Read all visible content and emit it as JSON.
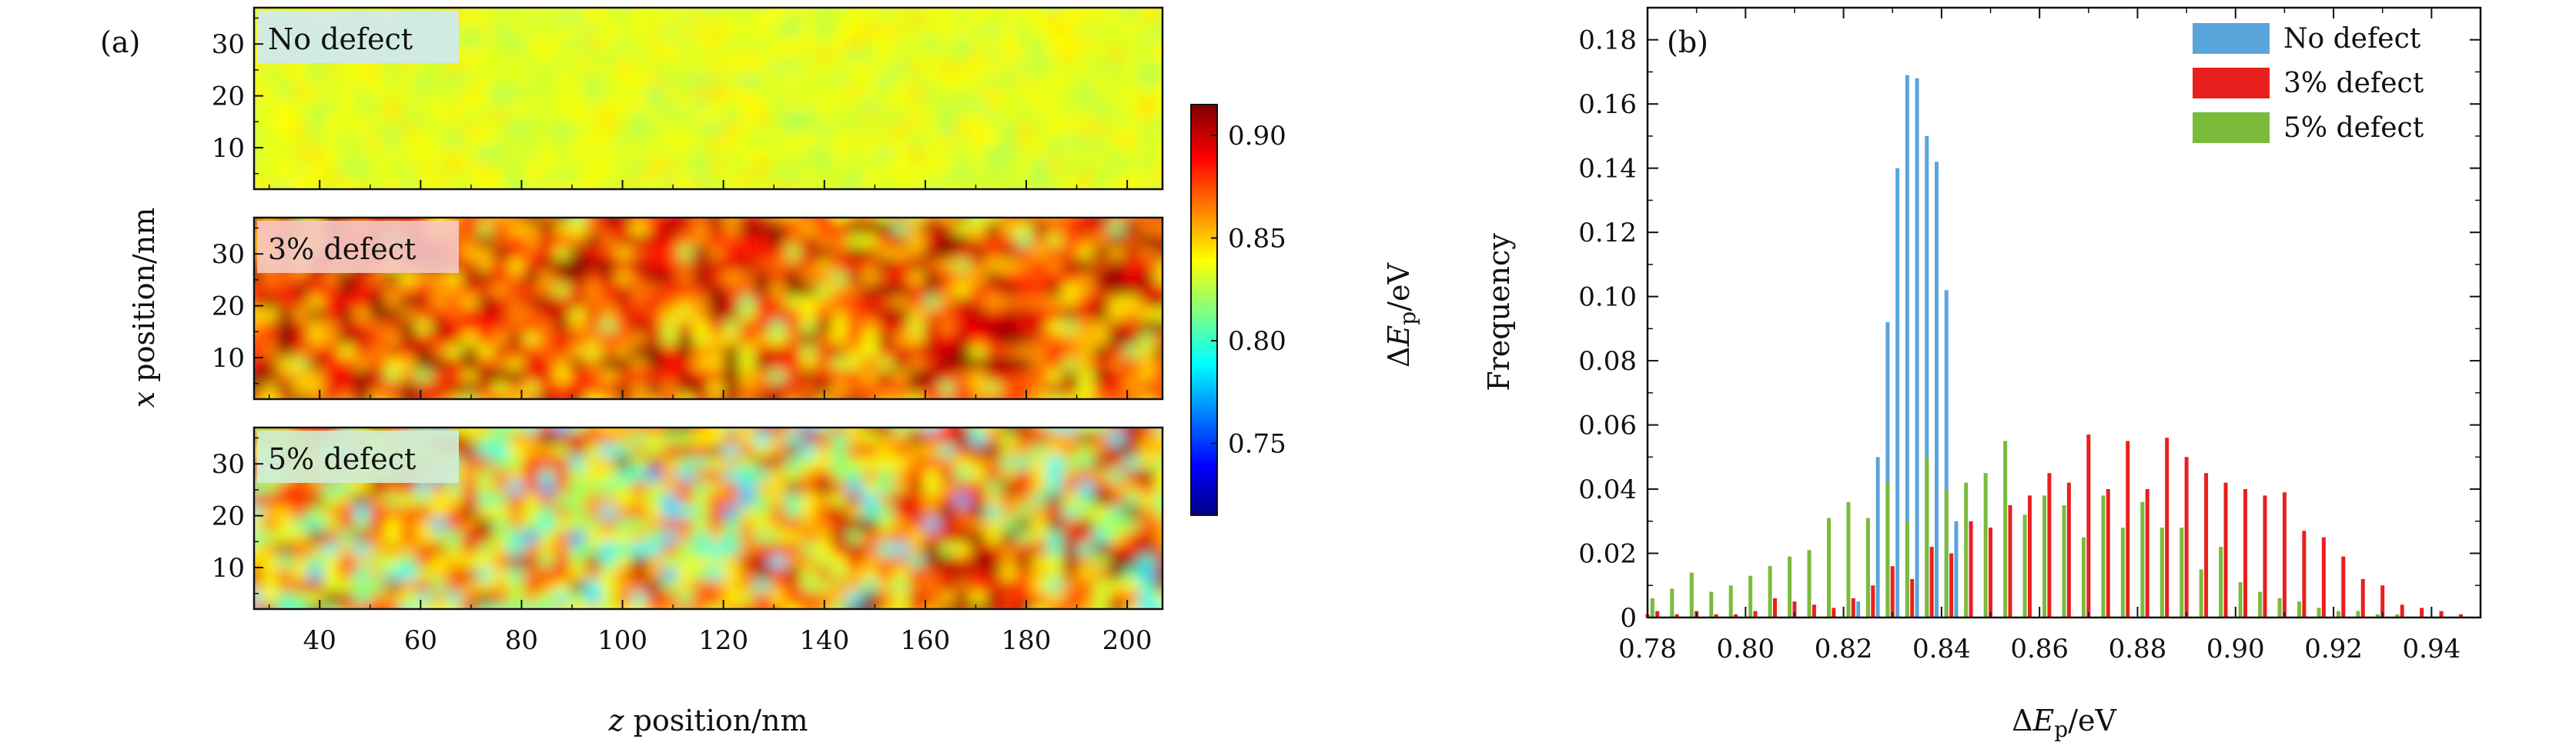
{
  "panel_a": {
    "tag": "(a)",
    "maps": [
      {
        "label": "No defect",
        "label_bg": "#cfe9f7"
      },
      {
        "label": "3% defect",
        "label_bg": "#f6c9c6"
      },
      {
        "label": "5% defect",
        "label_bg": "#cfeed5"
      }
    ],
    "y_label_italic": "x",
    "y_label_rest": " position/nm",
    "x_label_italic": "z",
    "x_label_rest": " position/nm",
    "y_ticks": [
      10,
      20,
      30
    ],
    "y_tick_labels": [
      "10",
      "20",
      "30"
    ],
    "x_ticks": [
      40,
      60,
      80,
      100,
      120,
      140,
      160,
      180,
      200
    ],
    "x_tick_labels": [
      "40",
      "60",
      "80",
      "100",
      "120",
      "140",
      "160",
      "180",
      "200"
    ],
    "x_range": [
      27,
      207
    ],
    "y_range": [
      2,
      37
    ],
    "colorbar": {
      "range": [
        0.715,
        0.915
      ],
      "ticks": [
        0.75,
        0.8,
        0.85,
        0.9
      ],
      "tick_labels": [
        "0.75",
        "0.80",
        "0.85",
        "0.90"
      ],
      "label_prefix": "Δ",
      "label_italic": "E",
      "label_sub": "p",
      "label_suffix": "/eV",
      "colormap": "jet"
    }
  },
  "chart_data": {
    "type": "bar",
    "panel_tag": "(b)",
    "xlabel_prefix": "Δ",
    "xlabel_italic": "E",
    "xlabel_sub": "p",
    "xlabel_suffix": "/eV",
    "ylabel": "Frequency",
    "xlim": [
      0.78,
      0.95
    ],
    "ylim": [
      0,
      0.19
    ],
    "x_ticks": [
      0.78,
      0.8,
      0.82,
      0.84,
      0.86,
      0.88,
      0.9,
      0.92,
      0.94
    ],
    "x_tick_labels": [
      "0.78",
      "0.80",
      "0.82",
      "0.84",
      "0.86",
      "0.88",
      "0.90",
      "0.92",
      "0.94"
    ],
    "y_ticks": [
      0,
      0.02,
      0.04,
      0.06,
      0.08,
      0.1,
      0.12,
      0.14,
      0.16,
      0.18
    ],
    "y_tick_labels": [
      "0",
      "0.02",
      "0.04",
      "0.06",
      "0.08",
      "0.10",
      "0.12",
      "0.14",
      "0.16",
      "0.18"
    ],
    "legend_position": "top-right",
    "series": [
      {
        "name": "No defect",
        "color": "#5aa5dc",
        "x": [
          0.821,
          0.823,
          0.825,
          0.827,
          0.829,
          0.831,
          0.833,
          0.835,
          0.837,
          0.839,
          0.841,
          0.843
        ],
        "values": [
          0.002,
          0.005,
          0.012,
          0.05,
          0.092,
          0.14,
          0.169,
          0.168,
          0.15,
          0.142,
          0.102,
          0.03
        ]
      },
      {
        "name": "3% defect",
        "color": "#e8201d",
        "x": [
          0.78,
          0.782,
          0.786,
          0.79,
          0.794,
          0.798,
          0.802,
          0.806,
          0.81,
          0.814,
          0.818,
          0.822,
          0.826,
          0.83,
          0.834,
          0.838,
          0.842,
          0.846,
          0.85,
          0.854,
          0.858,
          0.862,
          0.866,
          0.87,
          0.874,
          0.878,
          0.882,
          0.886,
          0.89,
          0.894,
          0.898,
          0.902,
          0.906,
          0.91,
          0.914,
          0.918,
          0.922,
          0.926,
          0.93,
          0.934,
          0.938,
          0.942,
          0.946
        ],
        "values": [
          0.001,
          0.002,
          0.001,
          0.002,
          0.001,
          0.001,
          0.002,
          0.006,
          0.005,
          0.004,
          0.003,
          0.006,
          0.01,
          0.016,
          0.012,
          0.022,
          0.02,
          0.03,
          0.028,
          0.035,
          0.038,
          0.045,
          0.042,
          0.057,
          0.04,
          0.055,
          0.04,
          0.056,
          0.05,
          0.045,
          0.042,
          0.04,
          0.038,
          0.039,
          0.027,
          0.025,
          0.019,
          0.012,
          0.01,
          0.004,
          0.003,
          0.002,
          0.001
        ]
      },
      {
        "name": "5% defect",
        "color": "#7abb3c",
        "x": [
          0.781,
          0.785,
          0.789,
          0.793,
          0.797,
          0.801,
          0.805,
          0.809,
          0.813,
          0.817,
          0.821,
          0.825,
          0.829,
          0.833,
          0.837,
          0.841,
          0.845,
          0.849,
          0.853,
          0.857,
          0.861,
          0.865,
          0.869,
          0.873,
          0.877,
          0.881,
          0.885,
          0.889,
          0.893,
          0.897,
          0.901,
          0.905,
          0.909,
          0.913,
          0.917,
          0.921,
          0.925,
          0.929,
          0.933
        ],
        "values": [
          0.006,
          0.009,
          0.014,
          0.008,
          0.01,
          0.013,
          0.016,
          0.019,
          0.021,
          0.031,
          0.036,
          0.031,
          0.042,
          0.03,
          0.05,
          0.04,
          0.042,
          0.045,
          0.055,
          0.032,
          0.038,
          0.035,
          0.025,
          0.038,
          0.028,
          0.036,
          0.028,
          0.028,
          0.015,
          0.022,
          0.011,
          0.008,
          0.006,
          0.005,
          0.003,
          0.002,
          0.002,
          0.001,
          0.001
        ]
      }
    ]
  }
}
